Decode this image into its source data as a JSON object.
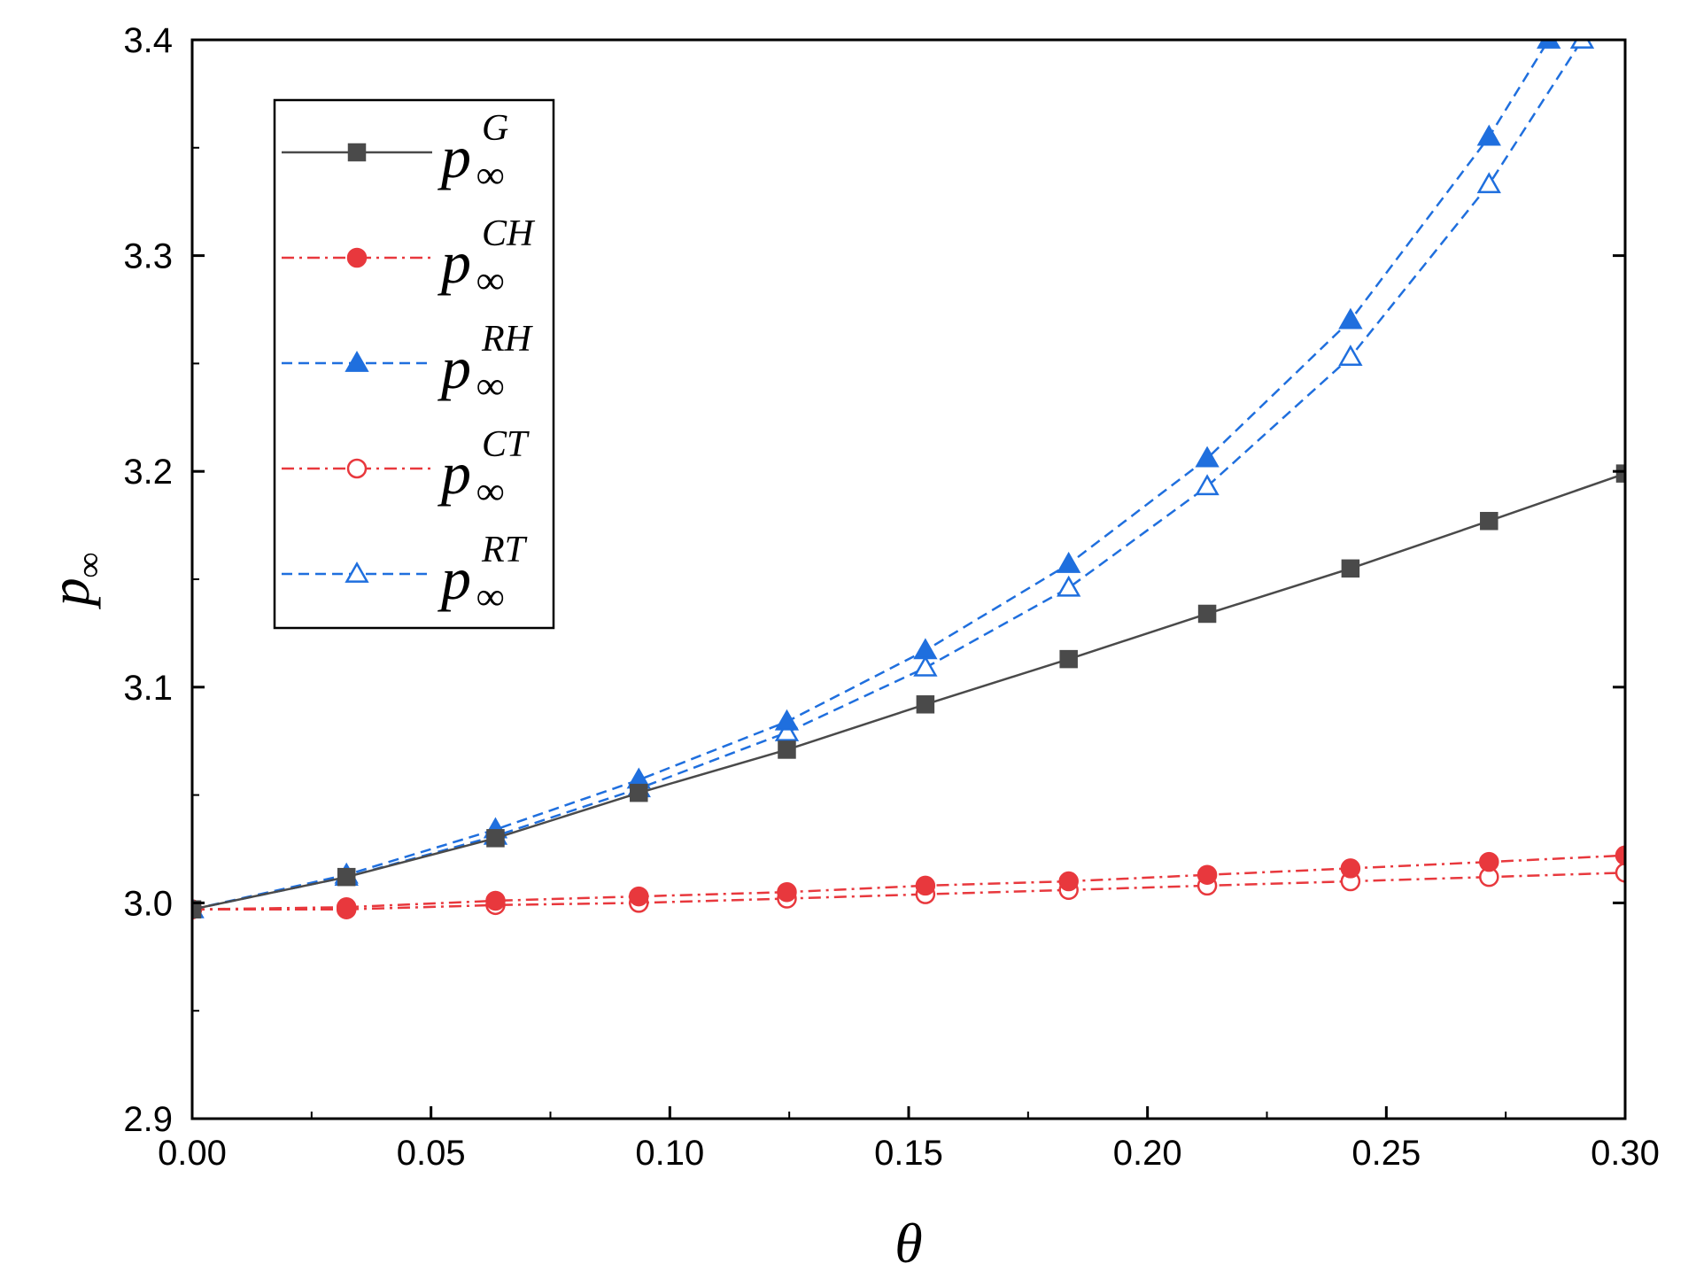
{
  "chart_data": {
    "type": "line",
    "title": "",
    "xlabel": "θ",
    "ylabel": {
      "base": "p",
      "sub": "∞"
    },
    "xlim": [
      0.0,
      0.3
    ],
    "ylim": [
      2.9,
      3.4
    ],
    "xticks": [
      "0.00",
      "0.05",
      "0.10",
      "0.15",
      "0.20",
      "0.25",
      "0.30"
    ],
    "yticks": [
      "2.9",
      "3.0",
      "3.1",
      "3.2",
      "3.3",
      "3.4"
    ],
    "grid": false,
    "legend_position": "top-left",
    "series": [
      {
        "name": "p∞^G",
        "base": "p",
        "sub": "∞",
        "sup": "G",
        "color": "#4a4a4a",
        "line": "solid",
        "marker": "square",
        "filled": true,
        "x": [
          0.0,
          0.0323,
          0.0635,
          0.0935,
          0.1245,
          0.1535,
          0.1835,
          0.2125,
          0.2425,
          0.2715,
          0.3
        ],
        "values": [
          2.997,
          3.012,
          3.03,
          3.051,
          3.071,
          3.092,
          3.113,
          3.134,
          3.155,
          3.177,
          3.199
        ]
      },
      {
        "name": "p∞^CH",
        "base": "p",
        "sub": "∞",
        "sup": "CH",
        "color": "#e8383d",
        "line": "dashdot",
        "marker": "circle",
        "filled": true,
        "x": [
          0.0,
          0.0323,
          0.0635,
          0.0935,
          0.1245,
          0.1535,
          0.1835,
          0.2125,
          0.2425,
          0.2715,
          0.3
        ],
        "values": [
          2.997,
          2.998,
          3.001,
          3.003,
          3.005,
          3.008,
          3.01,
          3.013,
          3.016,
          3.019,
          3.022
        ]
      },
      {
        "name": "p∞^RH",
        "base": "p",
        "sub": "∞",
        "sup": "RH",
        "color": "#1f6fde",
        "line": "dashed",
        "marker": "triangle",
        "filled": true,
        "x": [
          0.0,
          0.0323,
          0.0635,
          0.0935,
          0.1245,
          0.1535,
          0.1835,
          0.2125,
          0.2425,
          0.2715,
          0.284
        ],
        "values": [
          2.997,
          3.013,
          3.034,
          3.057,
          3.084,
          3.117,
          3.157,
          3.206,
          3.27,
          3.355,
          3.4
        ]
      },
      {
        "name": "p∞^CT",
        "base": "p",
        "sub": "∞",
        "sup": "CT",
        "color": "#e8383d",
        "line": "dashdot",
        "marker": "circle",
        "filled": false,
        "x": [
          0.0,
          0.0323,
          0.0635,
          0.0935,
          0.1245,
          0.1535,
          0.1835,
          0.2125,
          0.2425,
          0.2715,
          0.3
        ],
        "values": [
          2.997,
          2.997,
          2.999,
          3.0,
          3.002,
          3.004,
          3.006,
          3.008,
          3.01,
          3.012,
          3.014
        ]
      },
      {
        "name": "p∞^RT",
        "base": "p",
        "sub": "∞",
        "sup": "RT",
        "color": "#1f6fde",
        "line": "dashed",
        "marker": "triangle",
        "filled": false,
        "x": [
          0.0,
          0.0323,
          0.0635,
          0.0935,
          0.1245,
          0.1535,
          0.1835,
          0.2125,
          0.2425,
          0.2715,
          0.291
        ],
        "values": [
          2.997,
          3.012,
          3.031,
          3.053,
          3.079,
          3.109,
          3.146,
          3.193,
          3.253,
          3.333,
          3.4
        ]
      }
    ]
  }
}
